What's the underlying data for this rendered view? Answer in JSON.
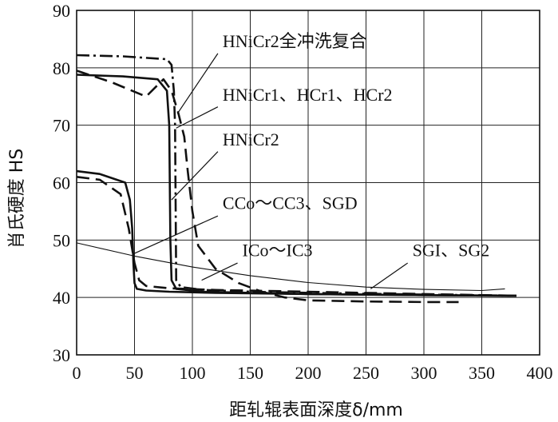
{
  "chart_data": {
    "type": "line",
    "xlabel": "距轧辊表面深度δ/mm",
    "ylabel": "肖氏硬度 HS",
    "xlim": [
      0,
      400
    ],
    "ylim": [
      30,
      90
    ],
    "x_ticks": [
      "0",
      "50",
      "100",
      "150",
      "200",
      "250",
      "300",
      "350",
      "400"
    ],
    "y_ticks": [
      "30",
      "40",
      "50",
      "60",
      "70",
      "80",
      "90"
    ],
    "grid": true,
    "annotations": [
      "HNiCr2全冲洗复合",
      "HNiCr1、HCr1、HCr2",
      "HNiCr2",
      "CCo～CC3、SGD",
      "ICo～IC3",
      "SGI、SG2"
    ],
    "series": [
      {
        "style": "dash-dot",
        "x": [
          0,
          40,
          78,
          82,
          84,
          85,
          86,
          90,
          110,
          150,
          200,
          300,
          380
        ],
        "y": [
          82.2,
          82,
          81.5,
          80.5,
          76,
          70,
          43,
          41.8,
          41.3,
          41,
          40.8,
          40.5,
          40.3
        ]
      },
      {
        "style": "solid",
        "x": [
          0,
          40,
          70,
          78,
          80,
          81,
          82,
          86,
          110,
          150,
          200,
          300,
          380
        ],
        "y": [
          78.8,
          78.5,
          78,
          76,
          70,
          50,
          43,
          41.5,
          41,
          40.8,
          40.6,
          40.4,
          40.3
        ]
      },
      {
        "style": "solid",
        "x": [
          0,
          20,
          42,
          46,
          48,
          49,
          50,
          52,
          60,
          80,
          120,
          200,
          300,
          380
        ],
        "y": [
          62,
          61.5,
          60,
          57,
          52,
          46,
          42.5,
          41.5,
          41.2,
          41,
          40.8,
          40.6,
          40.4,
          40.3
        ]
      },
      {
        "style": "dash",
        "x": [
          0,
          20,
          38,
          45,
          50,
          54,
          60,
          80,
          120,
          200,
          300,
          380
        ],
        "y": [
          61,
          60.5,
          58,
          52,
          46,
          43,
          42,
          41.6,
          41.3,
          41,
          40.6,
          40.3
        ]
      },
      {
        "style": "dash",
        "x": [
          0,
          30,
          60,
          75,
          82,
          88,
          93,
          96,
          100,
          105,
          120,
          140,
          160,
          180,
          200,
          250,
          300,
          330
        ],
        "y": [
          79.5,
          77.5,
          75,
          78,
          76,
          72,
          68,
          62,
          55,
          49,
          45,
          42.5,
          41,
          40,
          39.5,
          39.3,
          39.2,
          39.2
        ]
      },
      {
        "style": "thin",
        "x": [
          0,
          50,
          100,
          150,
          200,
          250,
          300,
          350,
          370
        ],
        "y": [
          49.5,
          47.2,
          45.3,
          43.8,
          42.6,
          41.8,
          41.4,
          41.2,
          41.5
        ]
      }
    ]
  }
}
